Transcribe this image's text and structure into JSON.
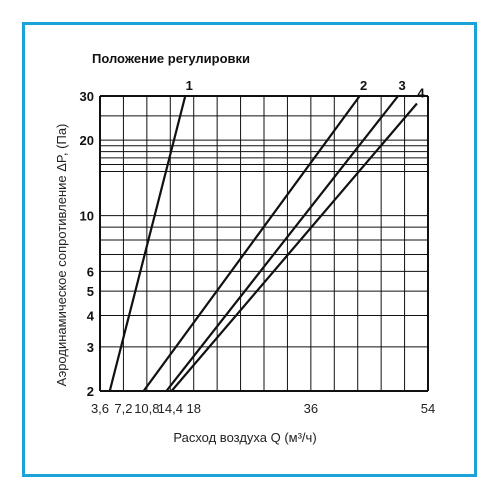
{
  "colors": {
    "frame": "#1aa3d9",
    "grid": "#111111",
    "line": "#111111",
    "background": "#ffffff"
  },
  "chart_data": {
    "type": "line",
    "title": "Положение регулировки",
    "xlabel": "Расход воздуха Q (м³/ч)",
    "ylabel": "Аэродинамическое сопротивление ΔP, (Па)",
    "xscale": "linear",
    "yscale": "log",
    "xlim": [
      3.6,
      54
    ],
    "ylim": [
      2,
      30
    ],
    "x_tick_labels": [
      "3,6",
      "7,2",
      "10,8",
      "14,4",
      "18",
      "36",
      "54"
    ],
    "y_tick_labels": [
      "2",
      "3",
      "4",
      "5",
      "6",
      "10",
      "20",
      "30"
    ],
    "grid": true,
    "series": [
      {
        "name": "1",
        "x": [
          5.1,
          16.7
        ],
        "y": [
          2,
          30
        ]
      },
      {
        "name": "2",
        "x": [
          10.3,
          43.5
        ],
        "y": [
          2,
          30
        ]
      },
      {
        "name": "3",
        "x": [
          13.8,
          49.4
        ],
        "y": [
          2,
          30
        ]
      },
      {
        "name": "4",
        "x": [
          14.6,
          52.3
        ],
        "y": [
          2,
          28
        ]
      }
    ]
  }
}
